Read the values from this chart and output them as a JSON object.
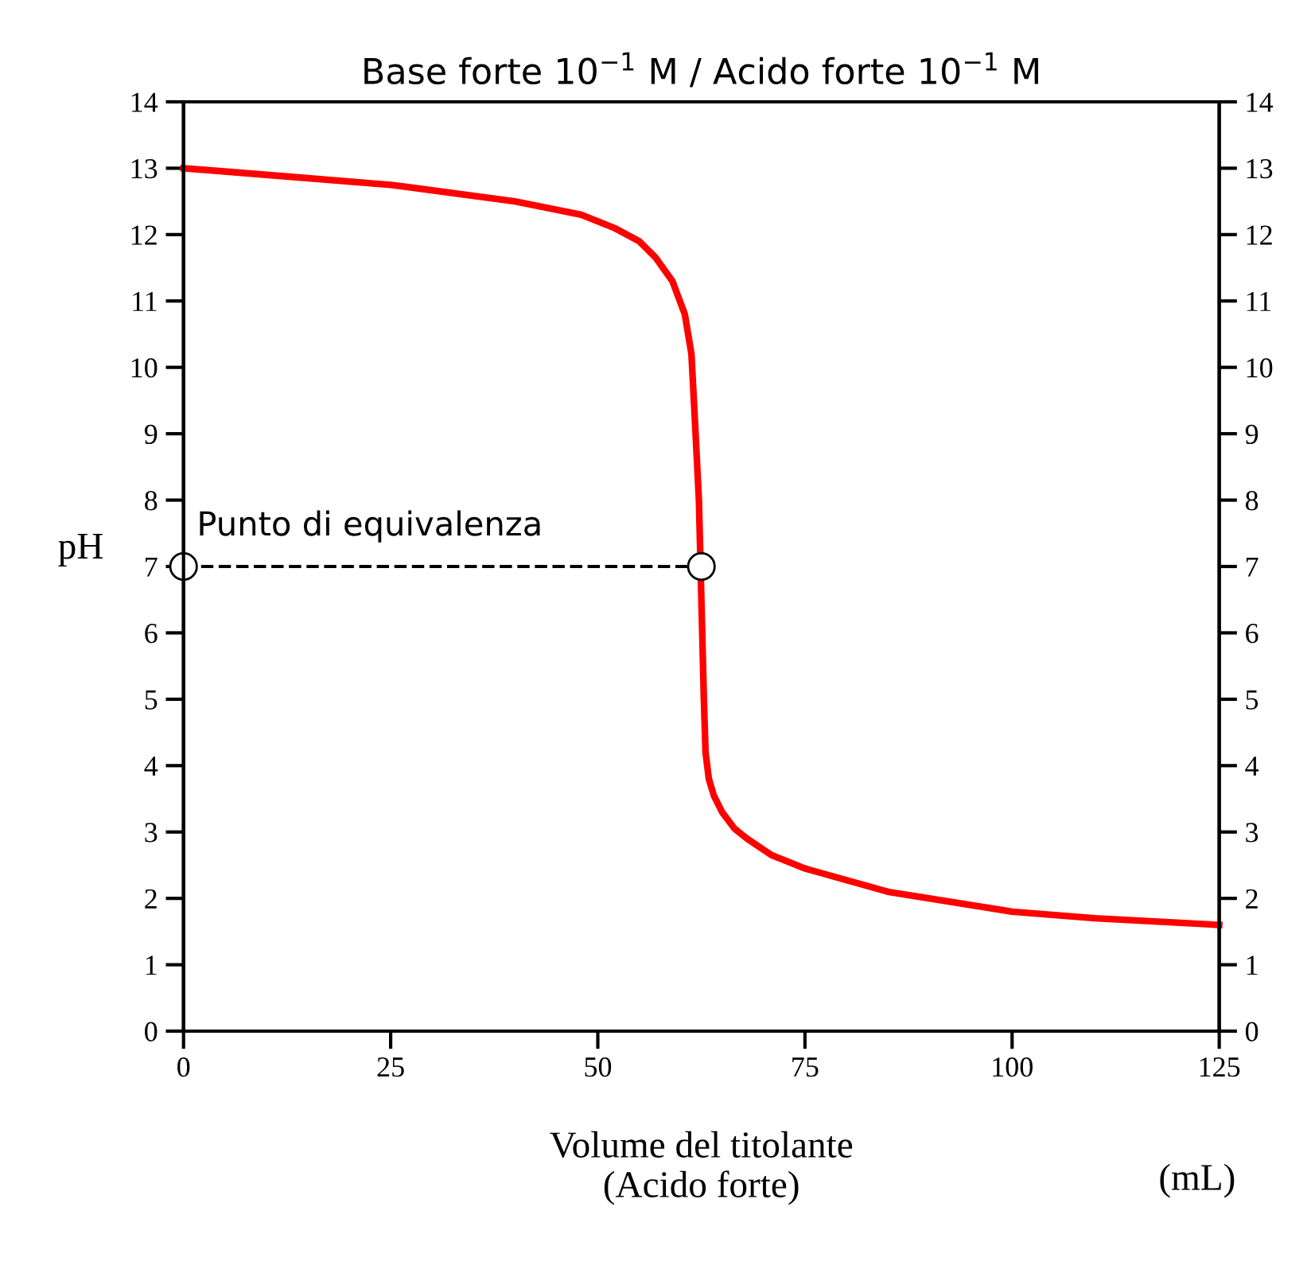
{
  "chart_data": {
    "type": "line",
    "title": "Base forte 10$^{−1}$ M / Acido forte 10$^{−1}$ M",
    "xlabel": "Volume del titolante\n(Acido forte)",
    "ylabel": "pH",
    "annotations": [
      {
        "text": "Punto di equivalenza",
        "x": 0,
        "y": 7
      },
      "(mL)"
    ],
    "series": [
      {
        "color": "#ff0000",
        "x": [
          0,
          10,
          25,
          40,
          48,
          52,
          55,
          57,
          59,
          60.5,
          61.3,
          61.8,
          62.2,
          62.8,
          63,
          63.4,
          64,
          65,
          66.5,
          68,
          71,
          75,
          85,
          100,
          110,
          125
        ],
        "values": [
          13,
          12.9,
          12.75,
          12.5,
          12.3,
          12.1,
          11.9,
          11.65,
          11.3,
          10.8,
          10.2,
          9,
          8,
          5,
          4.2,
          3.8,
          3.55,
          3.3,
          3.05,
          2.9,
          2.65,
          2.45,
          2.1,
          1.8,
          1.7,
          1.6
        ],
        "marker": "none",
        "line_style": "solid"
      },
      {
        "color": "#000000",
        "x": [
          0,
          62.5
        ],
        "values": [
          7,
          7
        ],
        "marker": "circle",
        "line_style": "dashed"
      }
    ],
    "xlim": [
      0,
      125
    ],
    "xticks": [
      0,
      25,
      50,
      75,
      100,
      125
    ],
    "ylim": [
      0,
      14
    ],
    "yticks": [
      0,
      1,
      2,
      3,
      4,
      5,
      6,
      7,
      8,
      9,
      10,
      11,
      12,
      13,
      14
    ],
    "y2lim": [
      0,
      14
    ],
    "y2ticks": [
      0,
      1,
      2,
      3,
      4,
      5,
      6,
      7,
      8,
      9,
      10,
      11,
      12,
      13,
      14
    ],
    "grid": false
  }
}
